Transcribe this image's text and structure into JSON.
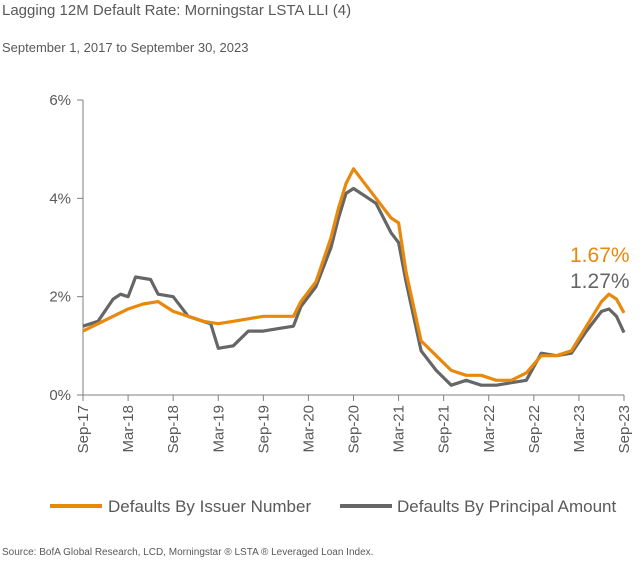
{
  "title": "Lagging 12M Default Rate: Morningstar LSTA LLI (4)",
  "subtitle": "September 1, 2017 to September 30, 2023",
  "source": "Source: BofA Global Research, LCD, Morningstar ® LSTA ® Leveraged Loan Index.",
  "colors": {
    "issuer": "#E8890C",
    "principal": "#666666",
    "axis": "#7F7F7F",
    "text": "#595959"
  },
  "chart_data": {
    "type": "line",
    "title": "Lagging 12M Default Rate: Morningstar LSTA LLI (4)",
    "ylim": [
      0,
      6
    ],
    "y_ticks": [
      0,
      2,
      4,
      6
    ],
    "y_tick_labels": [
      "0%",
      "2%",
      "4%",
      "6%"
    ],
    "x_range": [
      "2017-09",
      "2023-09"
    ],
    "x_tick_labels": [
      "Sep-17",
      "Mar-18",
      "Sep-18",
      "Mar-19",
      "Sep-19",
      "Mar-20",
      "Sep-20",
      "Mar-21",
      "Sep-21",
      "Mar-22",
      "Sep-22",
      "Mar-23",
      "Sep-23"
    ],
    "legend_position": "bottom",
    "grid": false,
    "series": [
      {
        "name": "Defaults By Issuer Number",
        "color": "#E8890C",
        "end_label": "1.67%",
        "points": [
          [
            "2017-09",
            1.3
          ],
          [
            "2017-11",
            1.45
          ],
          [
            "2018-01",
            1.6
          ],
          [
            "2018-03",
            1.75
          ],
          [
            "2018-05",
            1.85
          ],
          [
            "2018-07",
            1.9
          ],
          [
            "2018-09",
            1.7
          ],
          [
            "2018-11",
            1.6
          ],
          [
            "2019-01",
            1.5
          ],
          [
            "2019-03",
            1.45
          ],
          [
            "2019-05",
            1.5
          ],
          [
            "2019-07",
            1.55
          ],
          [
            "2019-09",
            1.6
          ],
          [
            "2019-11",
            1.6
          ],
          [
            "2020-01",
            1.6
          ],
          [
            "2020-02",
            1.9
          ],
          [
            "2020-04",
            2.3
          ],
          [
            "2020-06",
            3.2
          ],
          [
            "2020-07",
            3.8
          ],
          [
            "2020-08",
            4.3
          ],
          [
            "2020-09",
            4.6
          ],
          [
            "2020-10",
            4.4
          ],
          [
            "2020-12",
            4.0
          ],
          [
            "2021-02",
            3.6
          ],
          [
            "2021-03",
            3.5
          ],
          [
            "2021-04",
            2.5
          ],
          [
            "2021-06",
            1.1
          ],
          [
            "2021-08",
            0.8
          ],
          [
            "2021-10",
            0.5
          ],
          [
            "2021-12",
            0.4
          ],
          [
            "2022-02",
            0.4
          ],
          [
            "2022-04",
            0.3
          ],
          [
            "2022-06",
            0.3
          ],
          [
            "2022-08",
            0.45
          ],
          [
            "2022-10",
            0.8
          ],
          [
            "2022-12",
            0.8
          ],
          [
            "2023-02",
            0.9
          ],
          [
            "2023-04",
            1.4
          ],
          [
            "2023-06",
            1.9
          ],
          [
            "2023-07",
            2.05
          ],
          [
            "2023-08",
            1.95
          ],
          [
            "2023-09",
            1.67
          ]
        ]
      },
      {
        "name": "Defaults By Principal Amount",
        "color": "#666666",
        "end_label": "1.27%",
        "points": [
          [
            "2017-09",
            1.4
          ],
          [
            "2017-11",
            1.5
          ],
          [
            "2018-01",
            1.95
          ],
          [
            "2018-02",
            2.05
          ],
          [
            "2018-03",
            2.0
          ],
          [
            "2018-04",
            2.4
          ],
          [
            "2018-06",
            2.35
          ],
          [
            "2018-07",
            2.05
          ],
          [
            "2018-09",
            2.0
          ],
          [
            "2018-11",
            1.6
          ],
          [
            "2019-01",
            1.5
          ],
          [
            "2019-02",
            1.45
          ],
          [
            "2019-03",
            0.95
          ],
          [
            "2019-05",
            1.0
          ],
          [
            "2019-07",
            1.3
          ],
          [
            "2019-09",
            1.3
          ],
          [
            "2019-11",
            1.35
          ],
          [
            "2020-01",
            1.4
          ],
          [
            "2020-02",
            1.8
          ],
          [
            "2020-04",
            2.2
          ],
          [
            "2020-06",
            3.0
          ],
          [
            "2020-07",
            3.6
          ],
          [
            "2020-08",
            4.1
          ],
          [
            "2020-09",
            4.2
          ],
          [
            "2020-10",
            4.1
          ],
          [
            "2020-12",
            3.9
          ],
          [
            "2021-02",
            3.3
          ],
          [
            "2021-03",
            3.1
          ],
          [
            "2021-04",
            2.3
          ],
          [
            "2021-06",
            0.9
          ],
          [
            "2021-08",
            0.5
          ],
          [
            "2021-10",
            0.2
          ],
          [
            "2021-12",
            0.3
          ],
          [
            "2022-02",
            0.2
          ],
          [
            "2022-04",
            0.2
          ],
          [
            "2022-06",
            0.25
          ],
          [
            "2022-08",
            0.3
          ],
          [
            "2022-10",
            0.85
          ],
          [
            "2022-12",
            0.8
          ],
          [
            "2023-02",
            0.85
          ],
          [
            "2023-04",
            1.3
          ],
          [
            "2023-06",
            1.7
          ],
          [
            "2023-07",
            1.75
          ],
          [
            "2023-08",
            1.6
          ],
          [
            "2023-09",
            1.27
          ]
        ]
      }
    ]
  }
}
